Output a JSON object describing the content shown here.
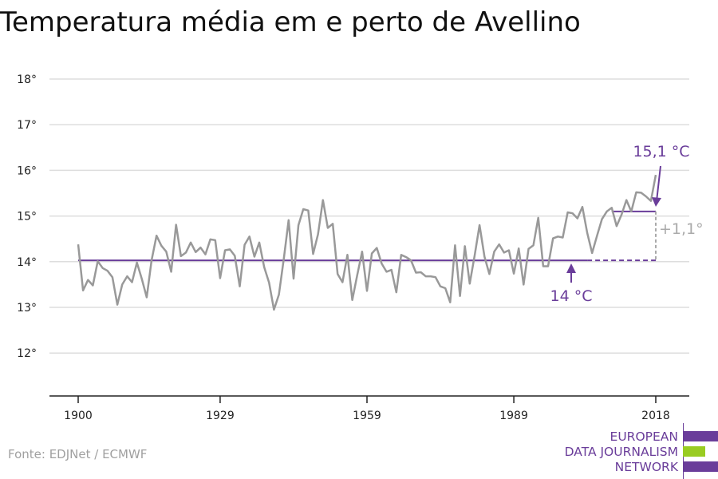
{
  "title": "Temperatura média em e perto de Avellino",
  "source": "Fonte: EDJNet / ECMWF",
  "logo": {
    "lines": [
      "EUROPEAN",
      "DATA JOURNALISM",
      "NETWORK"
    ],
    "colors": {
      "purple": "#6a3d9a",
      "green": "#99cc22"
    }
  },
  "colors": {
    "line": "#999999",
    "accent": "#6a3d9a",
    "grid": "#dddddd",
    "axis": "#222222",
    "diff": "#aaaaaa"
  },
  "chart_data": {
    "type": "line",
    "title": "Temperatura média em e perto de Avellino",
    "xlabel": "",
    "ylabel": "",
    "xlim": [
      1900,
      2018
    ],
    "ylim": [
      11,
      18
    ],
    "x_ticks": [
      1900,
      1929,
      1959,
      1989,
      2018
    ],
    "y_ticks": [
      12,
      13,
      14,
      15,
      16,
      17,
      18
    ],
    "y_tick_labels": [
      "12°",
      "13°",
      "14°",
      "15°",
      "16°",
      "17°",
      "18°"
    ],
    "grid": true,
    "x": [
      1900,
      1901,
      1902,
      1903,
      1904,
      1905,
      1906,
      1907,
      1908,
      1909,
      1910,
      1911,
      1912,
      1913,
      1914,
      1915,
      1916,
      1917,
      1918,
      1919,
      1920,
      1921,
      1922,
      1923,
      1924,
      1925,
      1926,
      1927,
      1928,
      1929,
      1930,
      1931,
      1932,
      1933,
      1934,
      1935,
      1936,
      1937,
      1938,
      1939,
      1940,
      1941,
      1942,
      1943,
      1944,
      1945,
      1946,
      1947,
      1948,
      1949,
      1950,
      1951,
      1952,
      1953,
      1954,
      1955,
      1956,
      1957,
      1958,
      1959,
      1960,
      1961,
      1962,
      1963,
      1964,
      1965,
      1966,
      1967,
      1968,
      1969,
      1970,
      1971,
      1972,
      1973,
      1974,
      1975,
      1976,
      1977,
      1978,
      1979,
      1980,
      1981,
      1982,
      1983,
      1984,
      1985,
      1986,
      1987,
      1988,
      1989,
      1990,
      1991,
      1992,
      1993,
      1994,
      1995,
      1996,
      1997,
      1998,
      1999,
      2000,
      2001,
      2002,
      2003,
      2004,
      2005,
      2006,
      2007,
      2008,
      2009,
      2010,
      2011,
      2012,
      2013,
      2014,
      2015,
      2016,
      2017,
      2018
    ],
    "series": [
      {
        "values": [
          14.38,
          13.37,
          13.6,
          13.48,
          14.01,
          13.86,
          13.8,
          13.66,
          13.06,
          13.5,
          13.68,
          13.55,
          13.98,
          13.62,
          13.22,
          14.03,
          14.57,
          14.35,
          14.22,
          13.78,
          14.81,
          14.12,
          14.2,
          14.42,
          14.21,
          14.31,
          14.16,
          14.49,
          14.47,
          13.64,
          14.25,
          14.27,
          14.13,
          13.46,
          14.37,
          14.55,
          14.11,
          14.42,
          13.88,
          13.54,
          12.95,
          13.28,
          14.06,
          14.91,
          13.63,
          14.8,
          15.15,
          15.12,
          14.17,
          14.6,
          15.35,
          14.74,
          14.83,
          13.73,
          13.55,
          14.15,
          13.16,
          13.7,
          14.22,
          13.36,
          14.18,
          14.3,
          13.96,
          13.78,
          13.82,
          13.33,
          14.15,
          14.1,
          14.03,
          13.76,
          13.77,
          13.68,
          13.68,
          13.66,
          13.46,
          13.42,
          13.11,
          14.36,
          13.25,
          14.34,
          13.52,
          14.14,
          14.8,
          14.11,
          13.73,
          14.22,
          14.38,
          14.2,
          14.25,
          13.74,
          14.29,
          13.5,
          14.28,
          14.36,
          14.96,
          13.9,
          13.9,
          14.51,
          14.55,
          14.53,
          15.08,
          15.06,
          14.95,
          15.2,
          14.63,
          14.19,
          14.57,
          14.93,
          15.1,
          15.18,
          14.78,
          15.03,
          15.35,
          15.1,
          15.52,
          15.51,
          15.43,
          15.33,
          15.9
        ]
      }
    ],
    "annotations": [
      {
        "label": "15,1 °C",
        "value": 15.1,
        "x_from": 2009,
        "x_to": 2018
      },
      {
        "label": "14 °C",
        "value": 14.03,
        "x_from": 1900,
        "x_to": 2004
      },
      {
        "label": "+1,1°"
      }
    ]
  }
}
